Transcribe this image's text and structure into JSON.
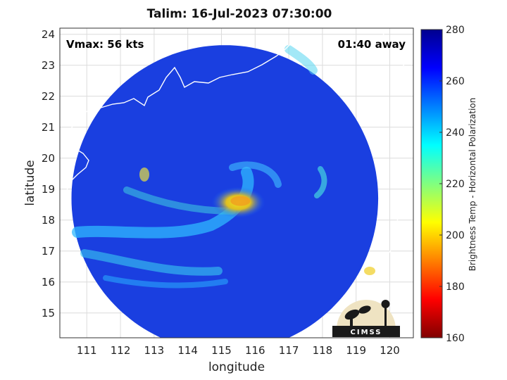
{
  "chart_data": {
    "type": "heatmap",
    "title": "Talim: 16-Jul-2023 07:30:00",
    "xlabel": "longitude",
    "ylabel": "latitude",
    "xlim": [
      110.2,
      120.7
    ],
    "ylim": [
      14.2,
      24.2
    ],
    "xticks": [
      "111",
      "112",
      "113",
      "114",
      "115",
      "116",
      "117",
      "118",
      "119",
      "120"
    ],
    "yticks": [
      "15",
      "16",
      "17",
      "18",
      "19",
      "20",
      "21",
      "22",
      "23",
      "24"
    ],
    "grid": true,
    "annotations": {
      "vmax": "Vmax: 56 kts",
      "time_away": "01:40 away"
    },
    "swath": {
      "center_lon": 115.1,
      "center_lat": 18.7,
      "radius_lat_deg": 4.95
    },
    "storm_center": {
      "lon": 115.5,
      "lat": 18.8
    },
    "colorbar": {
      "label": "Brightness Temp - Horizontal Polarization",
      "min": 160,
      "max": 280,
      "ticks": [
        "280",
        "260",
        "240",
        "220",
        "200",
        "180",
        "160"
      ],
      "colormap": [
        "#00008f",
        "#0000ff",
        "#0080ff",
        "#00ffff",
        "#80ff80",
        "#ffff00",
        "#ff8000",
        "#ff0000",
        "#800000"
      ]
    },
    "logo_text": "CIMSS"
  }
}
